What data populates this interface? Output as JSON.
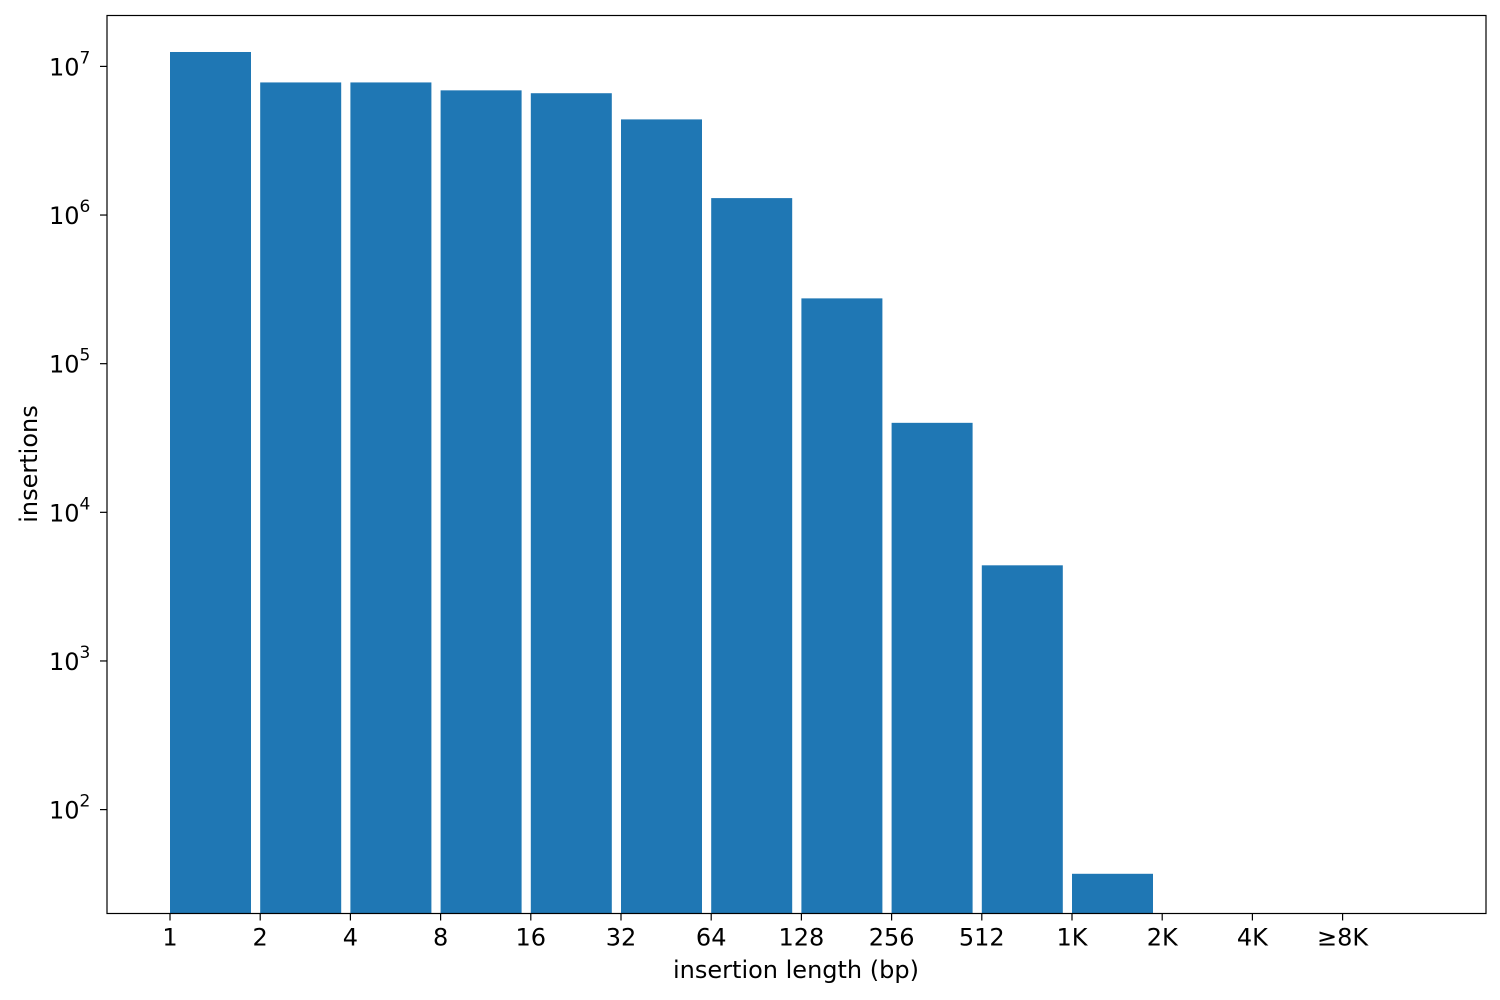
{
  "chart_data": {
    "type": "bar",
    "xlabel": "insertion length (bp)",
    "ylabel": "insertions",
    "yscale": "log",
    "ylim": [
      20,
      22000000
    ],
    "y_ticks": [
      {
        "base": "10",
        "exp": "2",
        "value": 100
      },
      {
        "base": "10",
        "exp": "3",
        "value": 1000
      },
      {
        "base": "10",
        "exp": "4",
        "value": 10000
      },
      {
        "base": "10",
        "exp": "5",
        "value": 100000
      },
      {
        "base": "10",
        "exp": "6",
        "value": 1000000
      },
      {
        "base": "10",
        "exp": "7",
        "value": 10000000
      }
    ],
    "x_tick_labels": [
      "1",
      "2",
      "4",
      "8",
      "16",
      "32",
      "64",
      "128",
      "256",
      "512",
      "1K",
      "2K",
      "4K",
      "≥8K"
    ],
    "bars": [
      {
        "bin_start": "1",
        "value": 12500000
      },
      {
        "bin_start": "2",
        "value": 7800000
      },
      {
        "bin_start": "4",
        "value": 7800000
      },
      {
        "bin_start": "8",
        "value": 6900000
      },
      {
        "bin_start": "16",
        "value": 6600000
      },
      {
        "bin_start": "32",
        "value": 4400000
      },
      {
        "bin_start": "64",
        "value": 1300000
      },
      {
        "bin_start": "128",
        "value": 275000
      },
      {
        "bin_start": "256",
        "value": 40000
      },
      {
        "bin_start": "512",
        "value": 4400
      },
      {
        "bin_start": "1K",
        "value": 37
      }
    ],
    "bar_color": "#1f77b4",
    "grid": false,
    "legend": "none"
  }
}
